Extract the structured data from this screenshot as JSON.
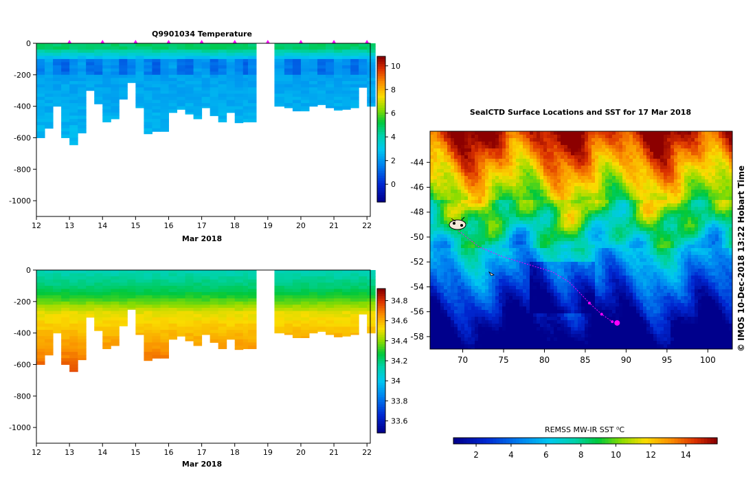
{
  "chart_data": [
    {
      "type": "heatmap",
      "title": "Q9901034  Temperature",
      "xlabel": "Mar 2018",
      "ylabel": "",
      "xlim": [
        12,
        22.1
      ],
      "ylim": [
        -1100,
        0
      ],
      "x_ticks": [
        "12",
        "13",
        "14",
        "15",
        "16",
        "17",
        "18",
        "19",
        "20",
        "21",
        "22"
      ],
      "y_ticks": [
        "0",
        "-200",
        "-400",
        "-600",
        "-800",
        "-1000"
      ],
      "colorbar": {
        "ticks": [
          "0",
          "2",
          "4",
          "6",
          "8",
          "10"
        ],
        "range": [
          -1.5,
          10.8
        ]
      },
      "profile_max_depth": [
        [
          12.0,
          -600
        ],
        [
          12.25,
          -540
        ],
        [
          12.5,
          -400
        ],
        [
          12.75,
          -600
        ],
        [
          13.0,
          -645
        ],
        [
          13.25,
          -570
        ],
        [
          13.5,
          -300
        ],
        [
          13.75,
          -385
        ],
        [
          14.0,
          -500
        ],
        [
          14.25,
          -480
        ],
        [
          14.5,
          -355
        ],
        [
          14.75,
          -250
        ],
        [
          15.0,
          -410
        ],
        [
          15.25,
          -575
        ],
        [
          15.5,
          -560
        ],
        [
          15.75,
          -560
        ],
        [
          16.0,
          -440
        ],
        [
          16.25,
          -420
        ],
        [
          16.5,
          -450
        ],
        [
          16.75,
          -480
        ],
        [
          17.0,
          -410
        ],
        [
          17.25,
          -460
        ],
        [
          17.5,
          -500
        ],
        [
          17.75,
          -440
        ],
        [
          18.0,
          -505
        ],
        [
          18.25,
          -500
        ],
        [
          18.4,
          -500
        ],
        [
          19.2,
          -400
        ],
        [
          19.5,
          -410
        ],
        [
          19.75,
          -430
        ],
        [
          20.0,
          -430
        ],
        [
          20.25,
          -400
        ],
        [
          20.5,
          -390
        ],
        [
          20.75,
          -410
        ],
        [
          21.0,
          -425
        ],
        [
          21.25,
          -420
        ],
        [
          21.5,
          -410
        ],
        [
          21.75,
          -280
        ],
        [
          22.0,
          -400
        ]
      ],
      "surface_fix_days": [
        13,
        14,
        15,
        16,
        17,
        18,
        19,
        20,
        21,
        22
      ]
    },
    {
      "type": "heatmap",
      "title": "",
      "xlabel": "Mar 2018",
      "ylabel": "",
      "xlim": [
        12,
        22.1
      ],
      "ylim": [
        -1100,
        0
      ],
      "x_ticks": [
        "12",
        "13",
        "14",
        "15",
        "16",
        "17",
        "18",
        "19",
        "20",
        "21",
        "22"
      ],
      "y_ticks": [
        "0",
        "-200",
        "-400",
        "-600",
        "-800",
        "-1000"
      ],
      "colorbar": {
        "ticks": [
          "33.6",
          "33.8",
          "34",
          "34.2",
          "34.4",
          "34.6",
          "34.8"
        ],
        "range": [
          33.48,
          34.92
        ]
      }
    },
    {
      "type": "heatmap",
      "title": "SealCTD Surface Locations and SST for 17 Mar 2018",
      "xlabel": "",
      "ylabel": "",
      "xlim": [
        66,
        103
      ],
      "ylim": [
        -59,
        -41.5
      ],
      "x_ticks": [
        "70",
        "75",
        "80",
        "85",
        "90",
        "95",
        "100"
      ],
      "y_ticks": [
        "-44",
        "-46",
        "-48",
        "-50",
        "-52",
        "-54",
        "-56",
        "-58"
      ],
      "colorbar": {
        "label": "REMSS MW-IR SST ⁰C",
        "ticks": [
          "2",
          "4",
          "6",
          "8",
          "10",
          "12",
          "14"
        ],
        "range": [
          0.7,
          15.8
        ]
      },
      "track_lon_lat": [
        [
          69.5,
          -49.5
        ],
        [
          72,
          -50.8
        ],
        [
          75,
          -51.6
        ],
        [
          78,
          -52.2
        ],
        [
          81,
          -52.8
        ],
        [
          83,
          -53.6
        ],
        [
          84.5,
          -54.6
        ],
        [
          85.5,
          -55.3
        ],
        [
          87,
          -56.2
        ],
        [
          88.3,
          -56.8
        ],
        [
          88.9,
          -56.9
        ]
      ],
      "track_color": "#ff00ff",
      "side_label": "© IMOS 10-Dec-2018 13:22 Hobart Time"
    }
  ]
}
